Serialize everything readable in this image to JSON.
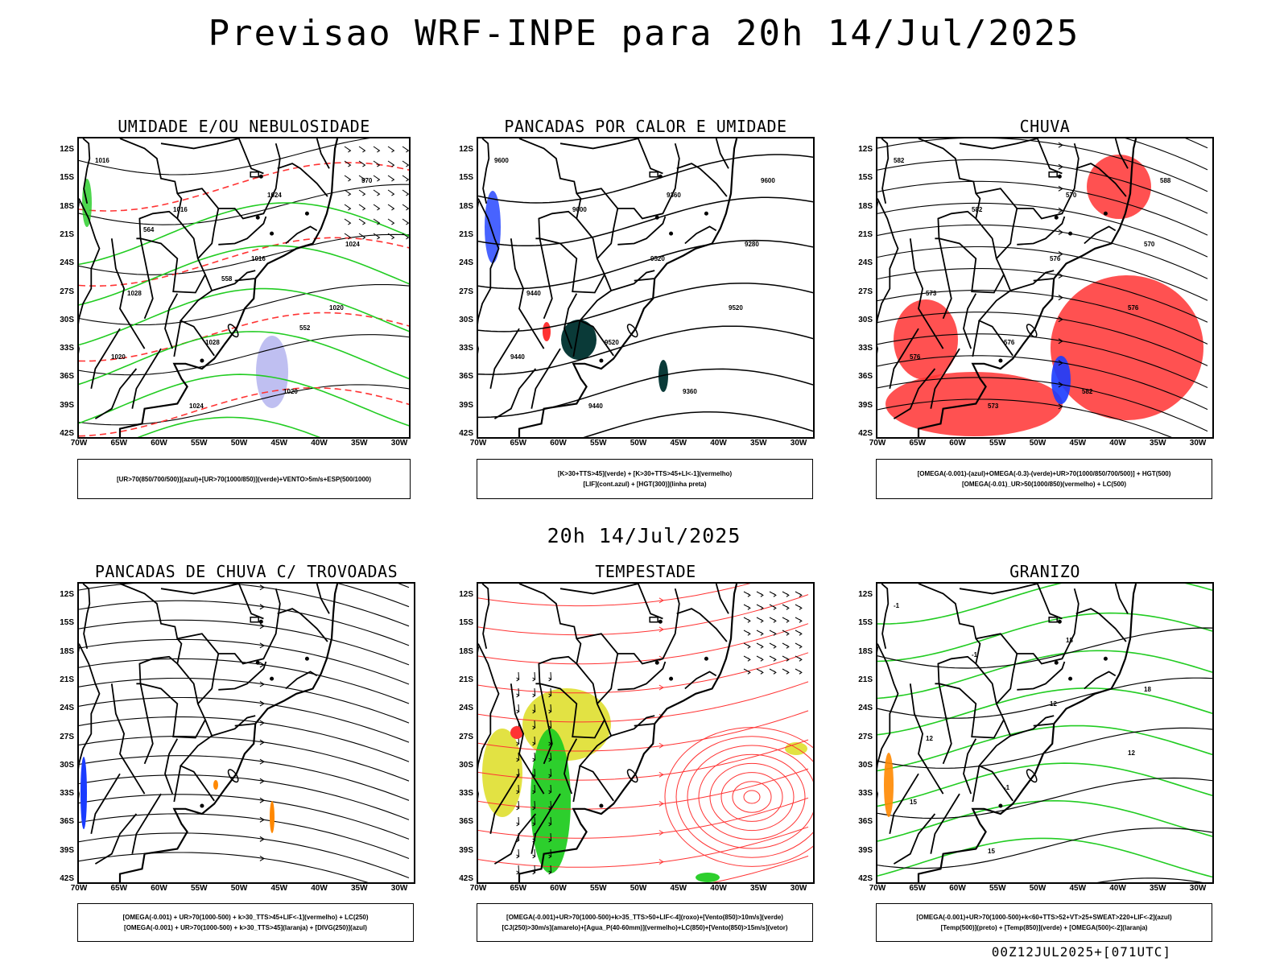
{
  "title": "Previsao WRF-INPE  para 20h 14/Jul/2025",
  "middle_title": "20h 14/Jul/2025",
  "footer": "00Z12JUL2025+[071UTC]",
  "lat_labels": [
    "12S",
    "15S",
    "18S",
    "21S",
    "24S",
    "27S",
    "30S",
    "33S",
    "36S",
    "39S",
    "42S"
  ],
  "lon_labels": [
    "70W",
    "65W",
    "60W",
    "55W",
    "50W",
    "45W",
    "40W",
    "35W",
    "30W"
  ],
  "panels": [
    {
      "title": "UMIDADE E/OU NEBULOSIDADE",
      "legend": [
        "[UR>70(850/700/500)](azul)+[UR>70(1000/850)](verde)+VENTO>5m/s+ESP(500/1000)"
      ],
      "contour_labels": [
        "1016",
        "1016",
        "1016",
        "1020",
        "1020",
        "1024",
        "1024",
        "1024",
        "1028",
        "1028",
        "1020",
        "570",
        "564",
        "558",
        "552"
      ]
    },
    {
      "title": "PANCADAS POR CALOR E UMIDADE",
      "legend": [
        "[K>30+TTS>45](verde) + [K>30+TTS>45+LI<-1](vermelho)",
        "[LIF](cont.azul) + [HGT(300)](linha preta)"
      ],
      "contour_labels": [
        "9600",
        "9600",
        "9520",
        "9520",
        "9440",
        "9440",
        "9360",
        "9280",
        "9440",
        "9520",
        "9360",
        "9600"
      ]
    },
    {
      "title": "CHUVA",
      "legend": [
        "[OMEGA(-0.001)-(azul)+OMEGA(-0.3)-(verde)+UR>70(1000/850/700/500)] + HGT(500)",
        "[OMEGA(-0.01)_UR>50(1000/850)(vermelho) + LC(500)"
      ],
      "contour_labels": [
        "582",
        "582",
        "576",
        "576",
        "576",
        "573",
        "570",
        "570",
        "573",
        "576",
        "582",
        "588"
      ]
    },
    {
      "title": "PANCADAS DE CHUVA C/ TROVOADAS",
      "legend": [
        "[OMEGA(-0.001) + UR>70(1000-500) + k>30_TTS>45+LIF<-1](vermelho) + LC(250)",
        "[OMEGA(-0.001) + UR>70(1000-500) + k>30_TTS>45](laranja) + [DIVG(250)](azul)"
      ],
      "contour_labels": []
    },
    {
      "title": "TEMPESTADE",
      "legend": [
        "[OMEGA(-0.001)+UR>70(1000-500)+k>35_TTS>50+LIF<-4](roxo)+[Vento(850)>10m/s](verde)",
        "[CJ(250)>30m/s](amarelo)+[Agua_P(40-60mm)](vermelho)+LC(850)+[Vento(850)>15m/s](vetor)"
      ],
      "contour_labels": []
    },
    {
      "title": "GRANIZO",
      "legend": [
        "[OMEGA(-0.001)+UR>70(1000-500)+k<60+TTS>52+VT>25+SWEAT>220+LIF<-2](azul)",
        "[Temp(500)](preto) + [Temp(850)](verde) + [OMEGA(500)<-2](laranja)"
      ],
      "contour_labels": [
        "-1",
        "-1",
        "12",
        "12",
        "15",
        "15",
        "18",
        "18",
        "12",
        "-1"
      ]
    }
  ],
  "colors": {
    "green": "#22cc22",
    "red": "#ff3333",
    "blue": "#1a3cff",
    "yellow": "#dddd22",
    "orange": "#ff8800",
    "lavender": "#b8b8f0",
    "darkteal": "#0a3a38"
  }
}
